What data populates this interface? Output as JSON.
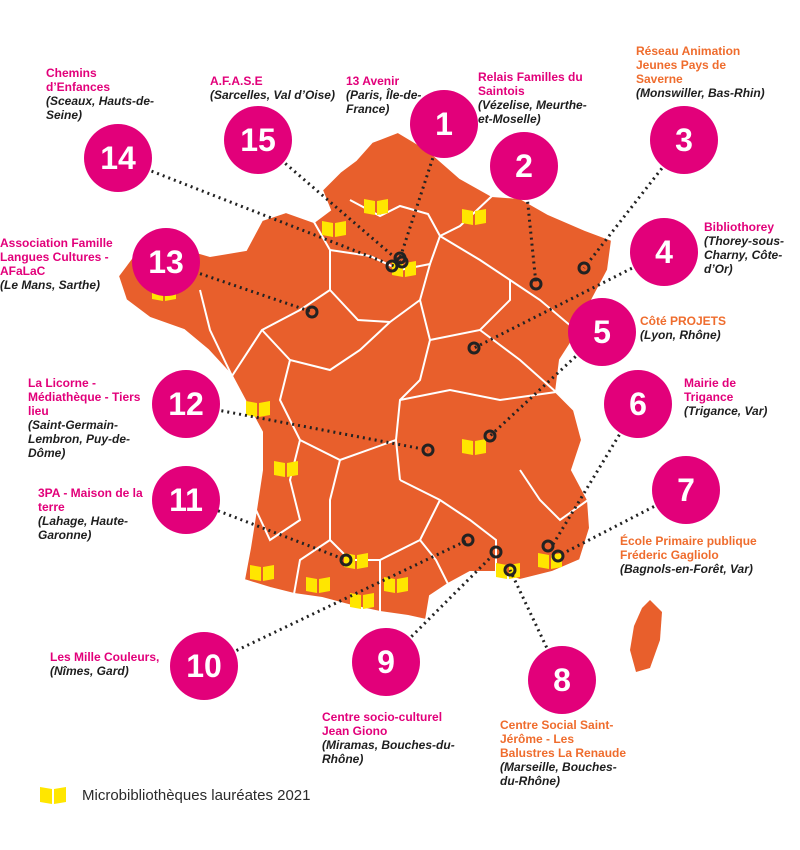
{
  "colors": {
    "region": "#e85f2c",
    "border": "#ffffff",
    "badge": "#e2007a",
    "book": "#ffe600",
    "pink_text": "#e2007a",
    "orange_text": "#ef6c2d"
  },
  "legend": {
    "icon": "open-book-icon",
    "label": "Microbibliothèques lauréates 2021"
  },
  "winners": [
    {
      "number": "1",
      "name": "Relais Familles du Saintois",
      "name_color": "pink",
      "location": "(Vézelise, Meurthe-et-Moselle)"
    },
    {
      "number": "2",
      "name": "Réseau Animation Jeunes Pays de Saverne",
      "name_color": "orange",
      "location": "(Monswiller, Bas-Rhin)"
    },
    {
      "number": "3",
      "name": "Bibliothorey",
      "name_color": "pink",
      "location": "(Thorey-sous-Charny, Côte-d’Or)"
    },
    {
      "number": "4",
      "name": "Côté PROJETS",
      "name_color": "orange",
      "location": "(Lyon, Rhône)"
    },
    {
      "number": "5",
      "name": "Mairie de Trigance",
      "name_color": "pink",
      "location": "(Trigance, Var)"
    },
    {
      "number": "6",
      "name": "École Primaire publique Fréderic Gagliolo",
      "name_color": "orange",
      "location": "(Bagnols-en-Forêt, Var)"
    },
    {
      "number": "7",
      "name": "Centre Social Saint-Jérôme - Les Balustres La Renaude",
      "name_color": "orange",
      "location": "(Marseille, Bouches-du-Rhône)"
    },
    {
      "number": "8",
      "name": "Centre socio-culturel Jean Giono",
      "name_color": "pink",
      "location": "(Miramas, Bouches-du-Rhône)"
    },
    {
      "number": "9",
      "name": "Les Mille Couleurs,",
      "name_color": "pink",
      "location": "(Nîmes, Gard)"
    },
    {
      "number": "10",
      "name": "3PA - Maison de la terre",
      "name_color": "pink",
      "location": "(Lahage, Haute-Garonne)"
    },
    {
      "number": "11",
      "name": "La Licorne - Médiathèque - Tiers lieu",
      "name_color": "pink",
      "location": "(Saint-Germain-Lembron, Puy-de-Dôme)"
    },
    {
      "number": "12",
      "name": "Association Famille Langues Cultures - AFaLaC",
      "name_color": "pink",
      "location": "(Le Mans, Sarthe)"
    },
    {
      "number": "13",
      "name": "Chemins d’Enfances",
      "name_color": "pink",
      "location": "(Sceaux, Hauts-de-Seine)"
    },
    {
      "number": "14",
      "name": "A.F.A.S.E",
      "name_color": "pink",
      "location": "(Sarcelles, Val d’Oise)"
    },
    {
      "number": "15",
      "name": "13 Avenir",
      "name_color": "pink",
      "location": "(Paris, Île-de-France)"
    }
  ]
}
